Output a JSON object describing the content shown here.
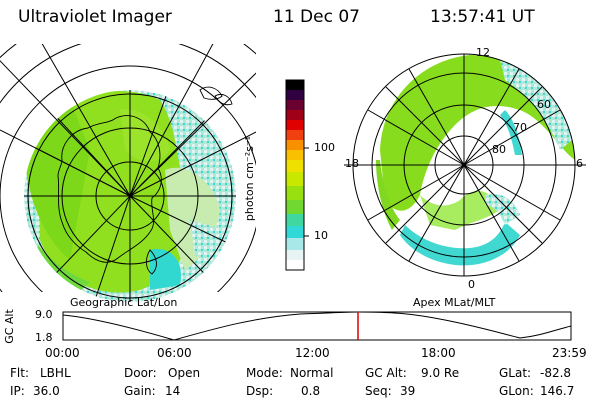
{
  "header": {
    "instrument": "Ultraviolet Imager",
    "date": "11 Dec 07",
    "time": "13:57:41 UT"
  },
  "left_map": {
    "caption": "Geographic Lat/Lon"
  },
  "right_map": {
    "caption": "Apex MLat/MLT",
    "mlt_labels": {
      "top": "12",
      "left": "18",
      "right": "6",
      "bottom": "0"
    },
    "mlat_labels": [
      "60",
      "70",
      "80"
    ]
  },
  "colorbar": {
    "unit_label": "photon cm⁻²s⁻¹",
    "ticks": [
      "100",
      "10"
    ],
    "scale": "log"
  },
  "orbit_plot": {
    "ylabel": "GC Alt",
    "ytick_top": "9.0",
    "ytick_bottom": "1.8",
    "xticks": [
      "00:00",
      "06:00",
      "12:00",
      "18:00",
      "23:59"
    ],
    "marker_time": "13:57",
    "marker_color": "#e00000"
  },
  "info": {
    "row1": [
      {
        "label": "Flt:",
        "value": "LBHL"
      },
      {
        "label": "Door:",
        "value": "Open"
      },
      {
        "label": "Mode:",
        "value": "Normal"
      },
      {
        "label": "GC Alt:",
        "value": "9.0 Re"
      },
      {
        "label": "GLat:",
        "value": "-82.8"
      }
    ],
    "row2": [
      {
        "label": "IP:",
        "value": "36.0"
      },
      {
        "label": "Gain:",
        "value": "14"
      },
      {
        "label": "Dsp:",
        "value": "0.8"
      },
      {
        "label": "Seq:",
        "value": "39"
      },
      {
        "label": "GLon:",
        "value": "146.7"
      }
    ]
  }
}
